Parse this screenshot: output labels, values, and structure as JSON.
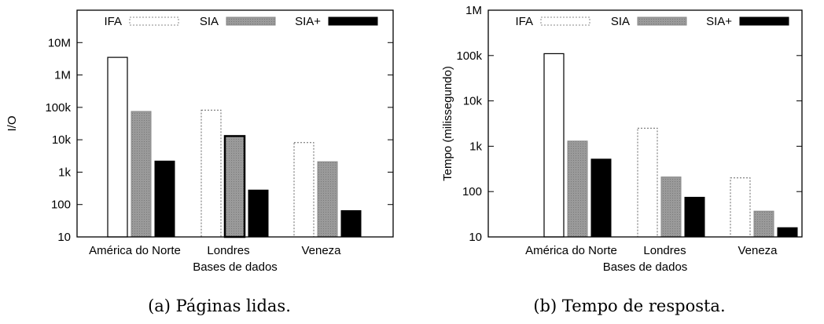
{
  "chart_data": [
    {
      "type": "bar",
      "caption": "(a) Páginas lidas.",
      "xlabel": "Bases de dados",
      "ylabel": "I/O",
      "yscale": "log",
      "ylim": [
        10,
        100000000
      ],
      "yticks": [
        {
          "v": 10,
          "label": "10"
        },
        {
          "v": 100,
          "label": "100"
        },
        {
          "v": 1000,
          "label": "1k"
        },
        {
          "v": 10000,
          "label": "10k"
        },
        {
          "v": 100000,
          "label": "100k"
        },
        {
          "v": 1000000,
          "label": "1M"
        },
        {
          "v": 10000000,
          "label": "10M"
        }
      ],
      "categories": [
        "América do Norte",
        "Londres",
        "Veneza"
      ],
      "series": [
        {
          "name": "IFA",
          "values": [
            3500000,
            82000,
            8200
          ]
        },
        {
          "name": "SIA",
          "values": [
            75000,
            13000,
            2100
          ]
        },
        {
          "name": "SIA+",
          "values": [
            2200,
            280,
            65
          ]
        }
      ],
      "legend_position": "top",
      "grid": false
    },
    {
      "type": "bar",
      "caption": "(b) Tempo de resposta.",
      "xlabel": "Bases de dados",
      "ylabel": "Tempo (milissegundo)",
      "yscale": "log",
      "ylim": [
        10,
        1000000
      ],
      "yticks": [
        {
          "v": 10,
          "label": "10"
        },
        {
          "v": 100,
          "label": "100"
        },
        {
          "v": 1000,
          "label": "1k"
        },
        {
          "v": 10000,
          "label": "10k"
        },
        {
          "v": 100000,
          "label": "100k"
        },
        {
          "v": 1000000,
          "label": "1M"
        }
      ],
      "categories": [
        "América do Norte",
        "Londres",
        "Veneza"
      ],
      "series": [
        {
          "name": "IFA",
          "values": [
            110000,
            2500,
            200
          ]
        },
        {
          "name": "SIA",
          "values": [
            1300,
            210,
            37
          ]
        },
        {
          "name": "SIA+",
          "values": [
            520,
            75,
            16
          ]
        }
      ],
      "legend_position": "top",
      "grid": false
    }
  ],
  "style": {
    "series_colors": {
      "IFA": "#ffffff",
      "SIA": "#999999",
      "SIA+": "#000000"
    },
    "highlight": {
      "chart": 0,
      "series": 1,
      "category": 1
    }
  }
}
